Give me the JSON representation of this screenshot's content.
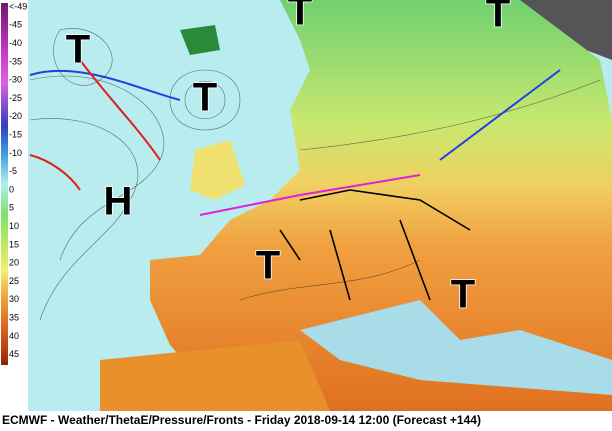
{
  "legend": {
    "labels": [
      "<-49",
      "-45",
      "-40",
      "-35",
      "-30",
      "-25",
      "-20",
      "-15",
      "-10",
      "-5",
      "0",
      "5",
      "10",
      "15",
      "20",
      "25",
      "30",
      "35",
      "40",
      "45"
    ]
  },
  "pressure_systems": {
    "labels": [
      "T",
      "T",
      "T",
      "T",
      "T",
      "T",
      "H"
    ]
  },
  "footer": {
    "text": "ECMWF - Weather/ThetaE/Pressure/Fronts - Friday 2018-09-14 12:00 (Forecast +144)"
  }
}
